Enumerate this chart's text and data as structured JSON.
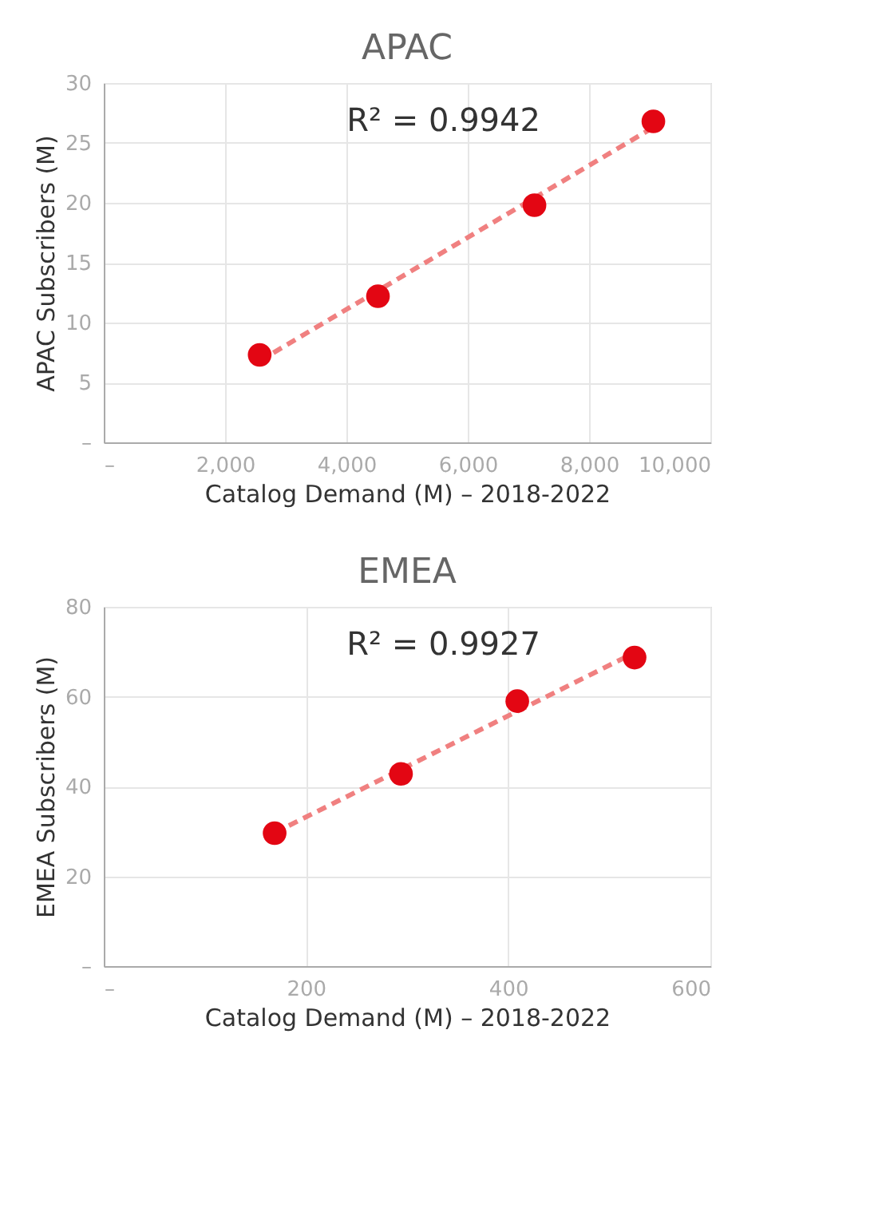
{
  "chart_data": [
    {
      "type": "scatter",
      "title": "APAC",
      "xlabel": "Catalog Demand (M) – 2018-2022",
      "ylabel": "APAC  Subscribers (M)",
      "xlim": [
        0,
        10000
      ],
      "ylim": [
        0,
        30
      ],
      "xticks": [
        {
          "value": 0,
          "label": "–"
        },
        {
          "value": 2000,
          "label": "2,000"
        },
        {
          "value": 4000,
          "label": "4,000"
        },
        {
          "value": 6000,
          "label": "6,000"
        },
        {
          "value": 8000,
          "label": "8,000"
        },
        {
          "value": 10000,
          "label": "10,000"
        }
      ],
      "yticks": [
        {
          "value": 0,
          "label": "–"
        },
        5,
        10,
        15,
        20,
        25,
        30
      ],
      "grid": true,
      "series": [
        {
          "type": "line",
          "line_style": "dashed",
          "color": "#f08080",
          "x": [
            2570,
            9060
          ],
          "values": [
            6.8,
            26.3
          ]
        },
        {
          "type": "scatter",
          "marker": "circle",
          "color": "#e30613",
          "x": [
            2570,
            4520,
            7100,
            9060
          ],
          "values": [
            7.3,
            12.2,
            19.8,
            26.8
          ]
        }
      ],
      "annotations": [
        "R² = 0.9942"
      ]
    },
    {
      "type": "scatter",
      "title": "EMEA",
      "xlabel": "Catalog Demand (M) – 2018-2022",
      "ylabel": "EMEA  Subscribers (M)",
      "xlim": [
        0,
        600
      ],
      "ylim": [
        0,
        80
      ],
      "xticks": [
        {
          "value": 0,
          "label": "–"
        },
        200,
        400,
        600
      ],
      "yticks": [
        {
          "value": 0,
          "label": "–"
        },
        20,
        40,
        60,
        80
      ],
      "grid": true,
      "series": [
        {
          "type": "line",
          "line_style": "dashed",
          "color": "#f08080",
          "x": [
            169,
            525
          ],
          "values": [
            29.7,
            69.8
          ]
        },
        {
          "type": "scatter",
          "marker": "circle",
          "color": "#e30613",
          "x": [
            169,
            294,
            409,
            525
          ],
          "values": [
            29.6,
            42.8,
            59.0,
            68.7
          ]
        }
      ],
      "annotations": [
        "R² = 0.9927"
      ]
    }
  ]
}
